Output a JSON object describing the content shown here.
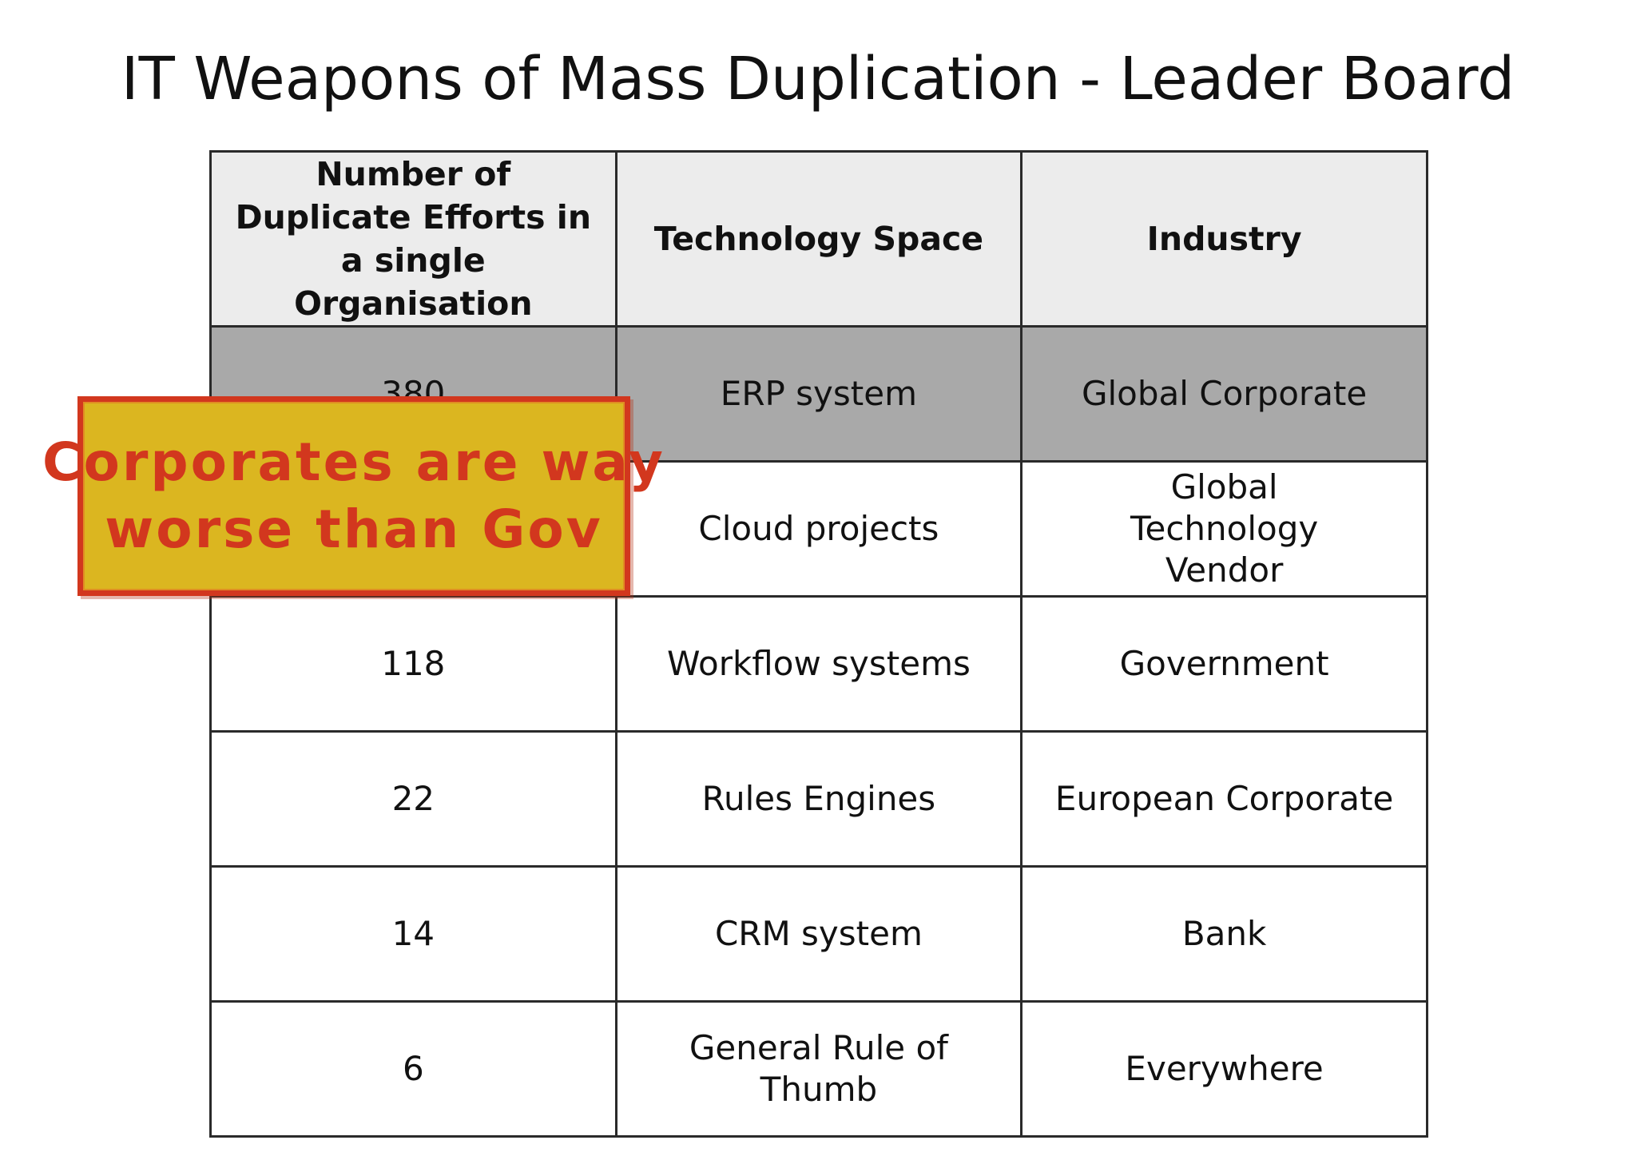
{
  "slide": {
    "title": "IT Weapons of Mass Duplication - Leader Board"
  },
  "table": {
    "headers": [
      "Number of Duplicate Efforts in a single Organisation",
      "Technology Space",
      "Industry"
    ],
    "rows": [
      {
        "count": "380",
        "technology": "ERP system",
        "industry": "Global Corporate",
        "highlighted": true
      },
      {
        "count": "",
        "technology": "Cloud projects",
        "industry": "Global Technology Vendor",
        "highlighted": false
      },
      {
        "count": "118",
        "technology": "Workflow systems",
        "industry": "Government",
        "highlighted": false
      },
      {
        "count": "22",
        "technology": "Rules Engines",
        "industry": "European Corporate",
        "highlighted": false
      },
      {
        "count": "14",
        "technology": "CRM system",
        "industry": "Bank",
        "highlighted": false
      },
      {
        "count": "6",
        "technology": "General Rule of Thumb",
        "industry": "Everywhere",
        "highlighted": false
      }
    ]
  },
  "callout": {
    "line1": "Corporates are way",
    "line2": "worse than Gov",
    "text_color": "#d2371e",
    "fill_color": "#dbb620"
  },
  "colors": {
    "header_fill": "#ececec",
    "highlight_row_fill": "#a9a9a9"
  }
}
